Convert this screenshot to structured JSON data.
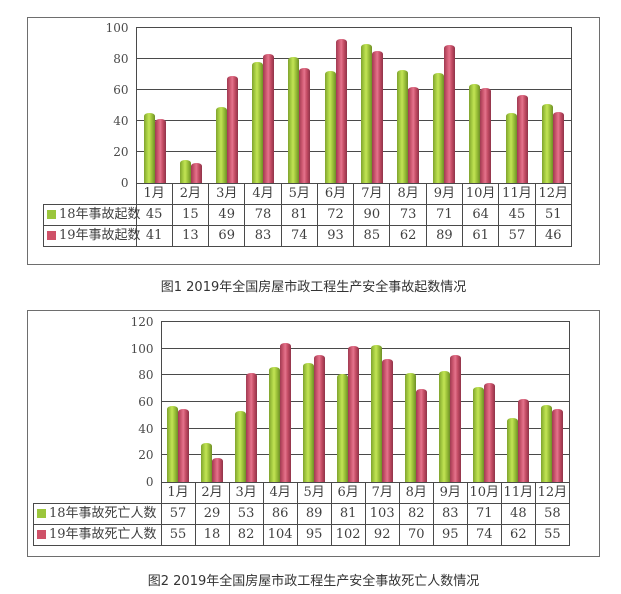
{
  "chart_data": [
    {
      "type": "bar",
      "title": "图1 2019年全国房屋市政工程生产安全事故起数情况",
      "categories": [
        "1月",
        "2月",
        "3月",
        "4月",
        "5月",
        "6月",
        "7月",
        "8月",
        "9月",
        "10月",
        "11月",
        "12月"
      ],
      "series": [
        {
          "name": "18年事故起数",
          "color": "#9bc63c",
          "values": [
            45,
            15,
            49,
            78,
            81,
            72,
            90,
            73,
            71,
            64,
            45,
            51
          ]
        },
        {
          "name": "19年事故起数",
          "color": "#cf5168",
          "values": [
            41,
            13,
            69,
            83,
            74,
            93,
            85,
            62,
            89,
            61,
            57,
            46
          ]
        }
      ],
      "ylim": [
        0,
        100
      ],
      "yticks": [
        0,
        20,
        40,
        60,
        80,
        100
      ],
      "grid": true,
      "legend_position": "table-left",
      "xlabel": "",
      "ylabel": ""
    },
    {
      "type": "bar",
      "title": "图2 2019年全国房屋市政工程生产安全事故死亡人数情况",
      "categories": [
        "1月",
        "2月",
        "3月",
        "4月",
        "5月",
        "6月",
        "7月",
        "8月",
        "9月",
        "10月",
        "11月",
        "12月"
      ],
      "series": [
        {
          "name": "18年事故死亡人数",
          "color": "#9bc63c",
          "values": [
            57,
            29,
            53,
            86,
            89,
            81,
            103,
            82,
            83,
            71,
            48,
            58
          ]
        },
        {
          "name": "19年事故死亡人数",
          "color": "#cf5168",
          "values": [
            55,
            18,
            82,
            104,
            95,
            102,
            92,
            70,
            95,
            74,
            62,
            55
          ]
        }
      ],
      "ylim": [
        0,
        120
      ],
      "yticks": [
        0,
        20,
        40,
        60,
        80,
        100,
        120
      ],
      "grid": true,
      "legend_position": "table-left",
      "xlabel": "",
      "ylabel": ""
    }
  ]
}
